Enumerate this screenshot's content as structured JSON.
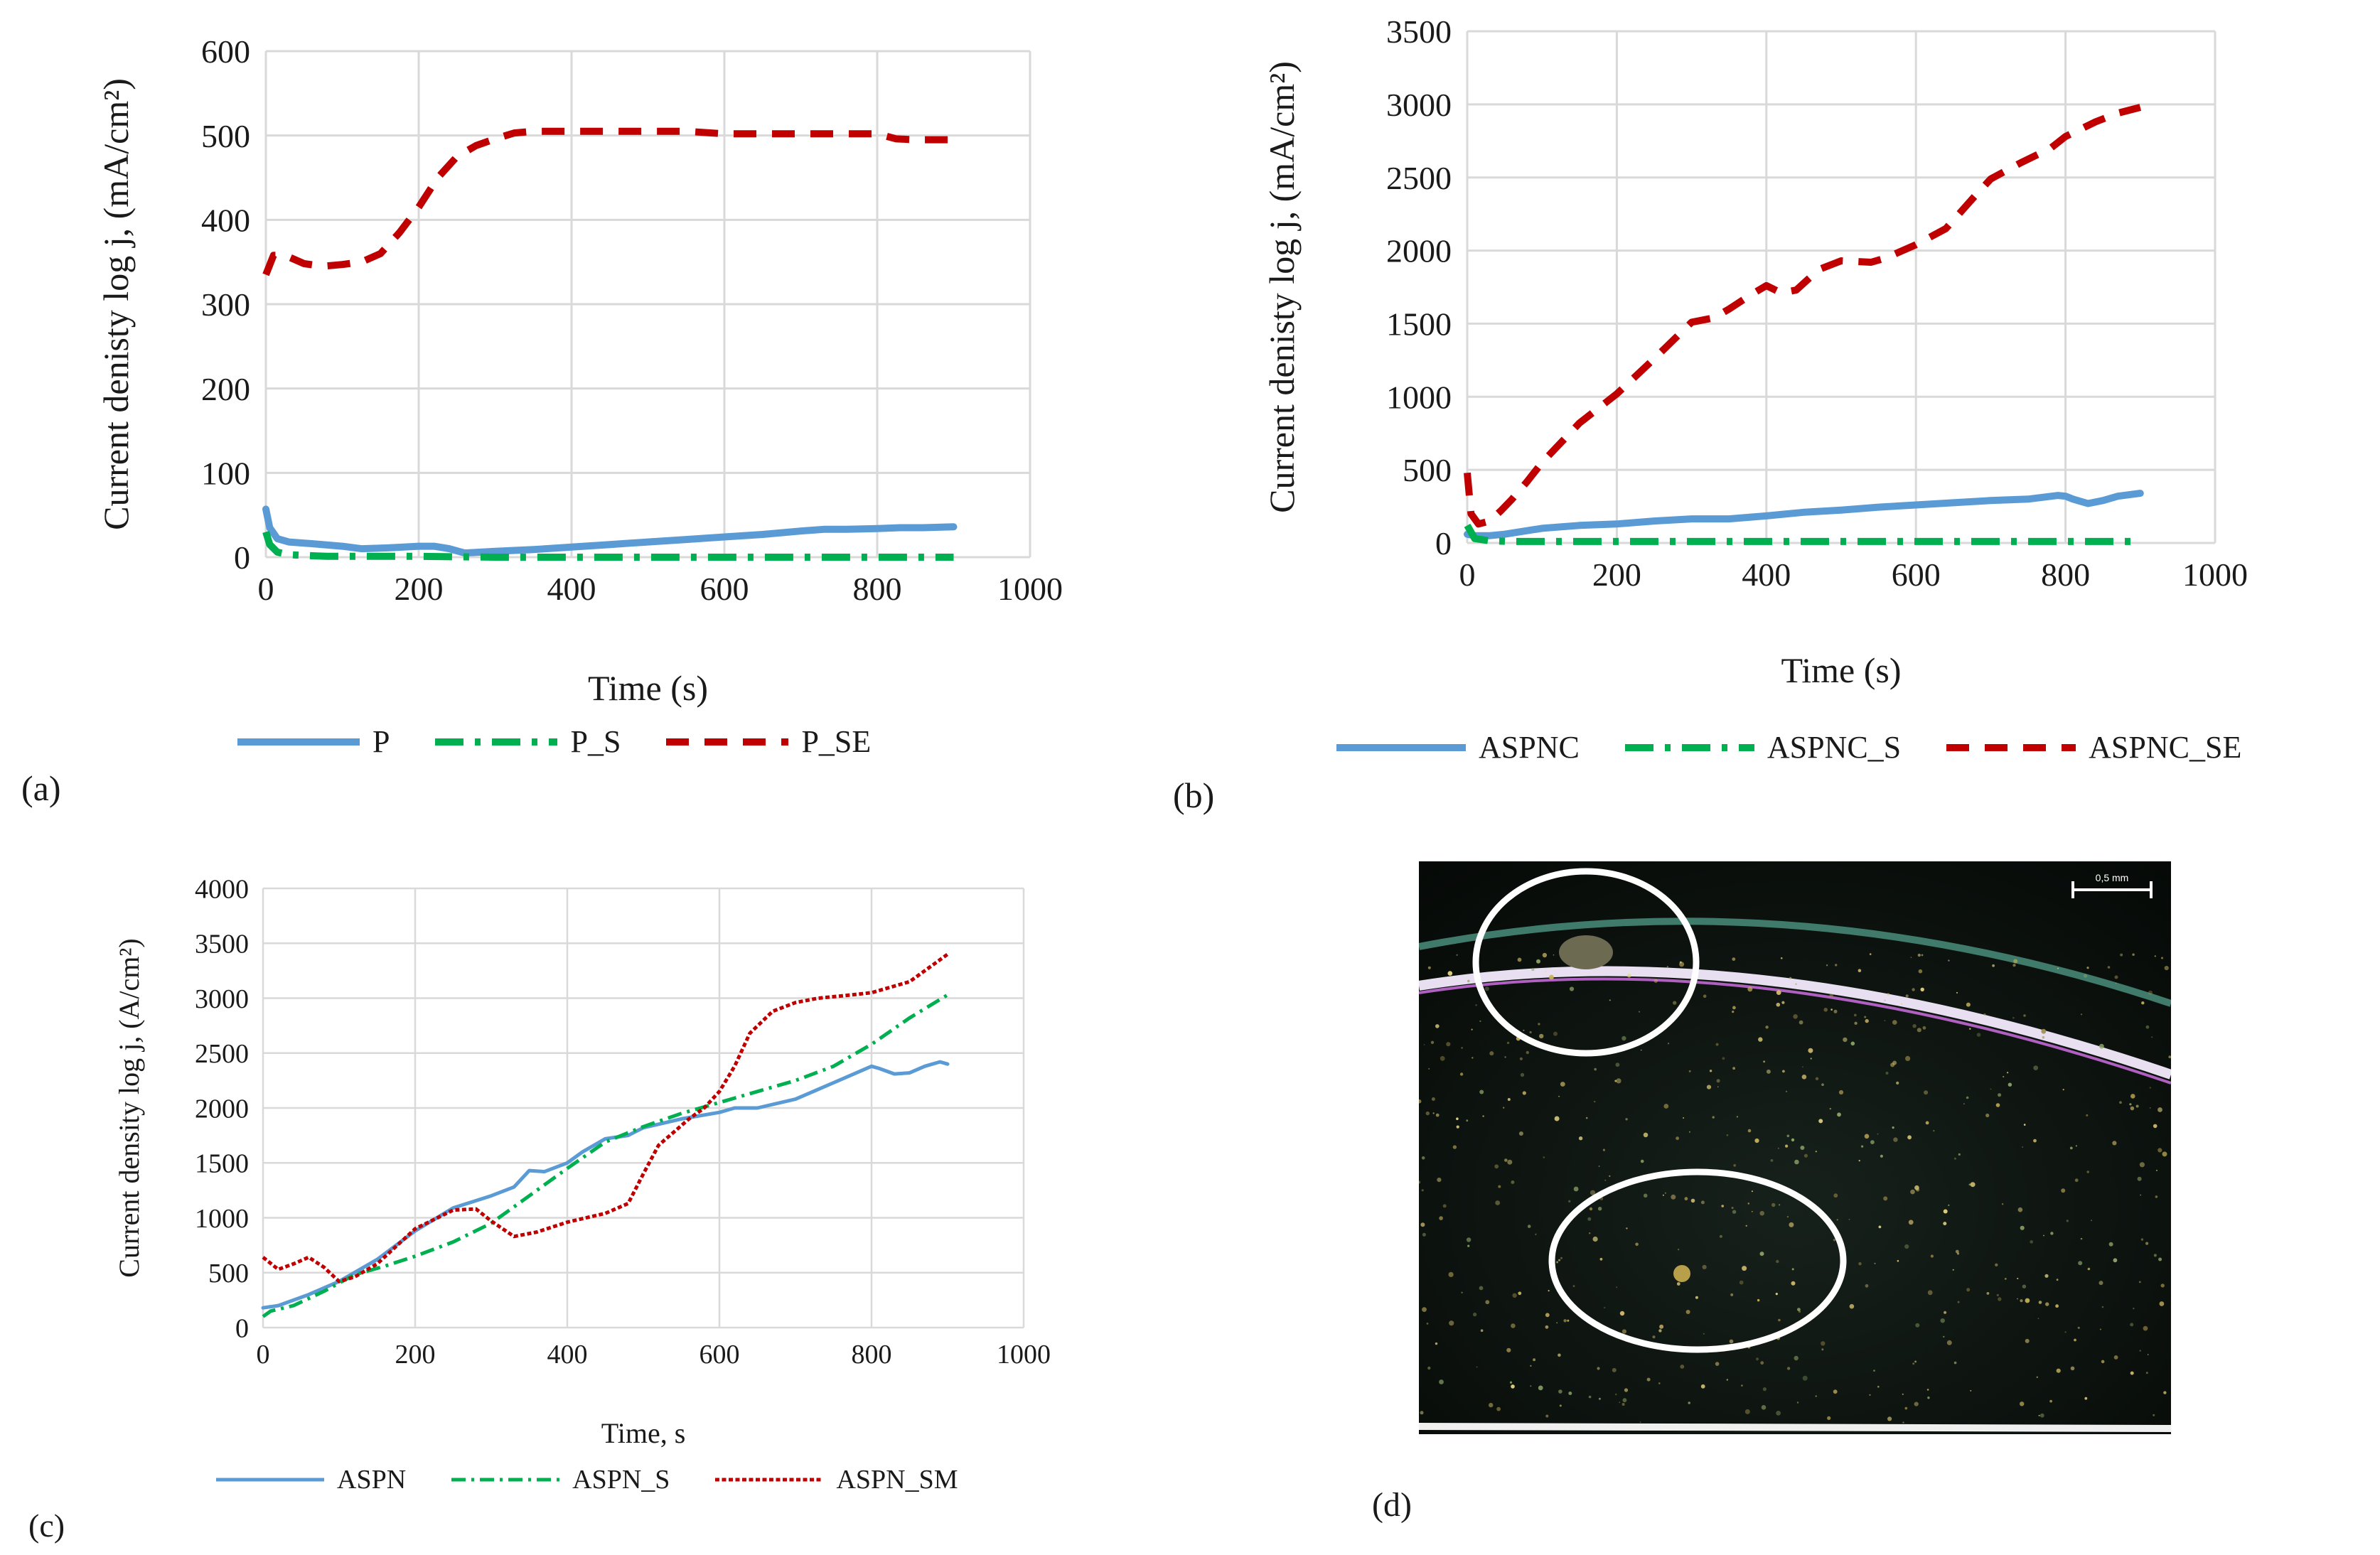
{
  "panels": {
    "a": {
      "label": "(a)"
    },
    "b": {
      "label": "(b)"
    },
    "c": {
      "label": "(c)"
    },
    "d": {
      "label": "(d)",
      "scale_bar_text": "0,5 mm"
    }
  },
  "colors": {
    "blue": "#5b9bd5",
    "green": "#00b050",
    "red": "#c00000",
    "grid": "#d9d9d9",
    "photo_background": "#0d1410",
    "marker_circle": "#ffffff"
  },
  "chart_data": [
    {
      "id": "a",
      "type": "line",
      "xlabel": "Time (s)",
      "ylabel": "Current denisty log j, (mA/cm²)",
      "xlim": [
        0,
        1000
      ],
      "ylim": [
        0,
        600
      ],
      "xticks": [
        0,
        200,
        400,
        600,
        800,
        1000
      ],
      "yticks": [
        0,
        100,
        200,
        300,
        400,
        500,
        600
      ],
      "grid": true,
      "legend_position": "bottom",
      "series": [
        {
          "name": "P",
          "style": "solid",
          "color": "#5b9bd5",
          "x": [
            0,
            5,
            15,
            30,
            60,
            100,
            125,
            160,
            200,
            220,
            240,
            260,
            300,
            350,
            400,
            450,
            500,
            550,
            600,
            650,
            700,
            730,
            760,
            800,
            830,
            860,
            900
          ],
          "y": [
            57,
            35,
            22,
            18,
            16,
            13,
            10,
            11,
            13,
            13,
            10,
            5,
            7,
            9,
            12,
            15,
            18,
            21,
            24,
            27,
            31,
            33,
            33,
            34,
            35,
            35,
            36
          ]
        },
        {
          "name": "P_S",
          "style": "dashdot",
          "color": "#00b050",
          "x": [
            0,
            5,
            15,
            30,
            50,
            80,
            120,
            200,
            300,
            400,
            500,
            600,
            700,
            800,
            900
          ],
          "y": [
            30,
            15,
            6,
            3,
            2,
            1,
            1,
            1,
            0,
            0,
            0,
            0,
            0,
            0,
            0
          ]
        },
        {
          "name": "P_SE",
          "style": "dashed",
          "color": "#c00000",
          "x": [
            0,
            10,
            25,
            50,
            75,
            100,
            125,
            150,
            175,
            200,
            225,
            250,
            275,
            300,
            325,
            350,
            400,
            450,
            500,
            550,
            600,
            650,
            700,
            750,
            800,
            825,
            850,
            900
          ],
          "y": [
            335,
            358,
            358,
            348,
            345,
            347,
            350,
            360,
            385,
            415,
            450,
            475,
            488,
            496,
            503,
            505,
            505,
            505,
            505,
            505,
            502,
            502,
            502,
            502,
            502,
            496,
            495,
            495
          ]
        }
      ]
    },
    {
      "id": "b",
      "type": "line",
      "xlabel": "Time (s)",
      "ylabel": "Current denisty log j, (mA/cm²)",
      "xlim": [
        0,
        1000
      ],
      "ylim": [
        0,
        3500
      ],
      "xticks": [
        0,
        200,
        400,
        600,
        800,
        1000
      ],
      "yticks": [
        0,
        500,
        1000,
        1500,
        2000,
        2500,
        3000,
        3500
      ],
      "grid": true,
      "legend_position": "bottom",
      "series": [
        {
          "name": "ASPNC",
          "style": "solid",
          "color": "#5b9bd5",
          "x": [
            0,
            10,
            30,
            50,
            100,
            150,
            200,
            250,
            300,
            350,
            400,
            450,
            500,
            550,
            600,
            650,
            700,
            750,
            790,
            800,
            810,
            830,
            850,
            870,
            900
          ],
          "y": [
            60,
            50,
            50,
            60,
            100,
            120,
            130,
            150,
            165,
            165,
            185,
            210,
            225,
            245,
            260,
            275,
            290,
            300,
            325,
            320,
            300,
            270,
            290,
            320,
            340
          ]
        },
        {
          "name": "ASPNC_S",
          "style": "dashdot",
          "color": "#00b050",
          "x": [
            0,
            10,
            30,
            60,
            100,
            200,
            300,
            400,
            500,
            600,
            700,
            800,
            900
          ],
          "y": [
            120,
            30,
            15,
            10,
            10,
            10,
            10,
            10,
            10,
            10,
            10,
            10,
            10
          ]
        },
        {
          "name": "ASPNC_SE",
          "style": "dashed",
          "color": "#c00000",
          "x": [
            0,
            5,
            15,
            30,
            45,
            60,
            80,
            100,
            150,
            200,
            250,
            300,
            330,
            350,
            380,
            400,
            420,
            440,
            470,
            500,
            540,
            560,
            600,
            640,
            680,
            700,
            740,
            780,
            800,
            840,
            870,
            900
          ],
          "y": [
            480,
            200,
            130,
            150,
            220,
            300,
            420,
            550,
            820,
            1020,
            1260,
            1510,
            1540,
            1600,
            1700,
            1760,
            1710,
            1730,
            1870,
            1930,
            1920,
            1950,
            2040,
            2150,
            2380,
            2490,
            2600,
            2700,
            2780,
            2880,
            2940,
            2980
          ]
        }
      ]
    },
    {
      "id": "c",
      "type": "line",
      "xlabel": "Time, s",
      "ylabel": "Current density log j, (A/cm²)",
      "xlim": [
        0,
        1000
      ],
      "ylim": [
        0,
        4000
      ],
      "xticks": [
        0,
        200,
        400,
        600,
        800,
        1000
      ],
      "yticks": [
        0,
        500,
        1000,
        1500,
        2000,
        2500,
        3000,
        3500,
        4000
      ],
      "grid": true,
      "legend_position": "bottom",
      "series": [
        {
          "name": "ASPN",
          "style": "solid",
          "color": "#5b9bd5",
          "x": [
            0,
            20,
            60,
            100,
            150,
            200,
            250,
            300,
            330,
            350,
            370,
            400,
            420,
            450,
            480,
            500,
            550,
            600,
            620,
            650,
            700,
            750,
            800,
            810,
            830,
            850,
            870,
            890,
            900
          ],
          "y": [
            180,
            200,
            300,
            420,
            620,
            880,
            1090,
            1200,
            1280,
            1430,
            1420,
            1500,
            1600,
            1720,
            1750,
            1820,
            1900,
            1960,
            2000,
            2000,
            2080,
            2230,
            2380,
            2360,
            2310,
            2320,
            2380,
            2420,
            2400
          ]
        },
        {
          "name": "ASPN_S",
          "style": "dashdot",
          "color": "#00b050",
          "x": [
            0,
            10,
            40,
            80,
            120,
            160,
            200,
            250,
            300,
            350,
            400,
            450,
            500,
            550,
            600,
            650,
            700,
            750,
            800,
            850,
            900
          ],
          "y": [
            100,
            150,
            200,
            330,
            480,
            560,
            650,
            780,
            950,
            1200,
            1450,
            1690,
            1830,
            1950,
            2050,
            2150,
            2250,
            2380,
            2580,
            2820,
            3030
          ]
        },
        {
          "name": "ASPN_SM",
          "style": "dotted",
          "color": "#c00000",
          "x": [
            0,
            20,
            40,
            60,
            80,
            100,
            120,
            150,
            200,
            250,
            280,
            300,
            330,
            360,
            400,
            450,
            480,
            500,
            520,
            540,
            560,
            580,
            600,
            620,
            640,
            670,
            700,
            730,
            760,
            800,
            850,
            870,
            900
          ],
          "y": [
            640,
            530,
            580,
            640,
            550,
            420,
            460,
            580,
            900,
            1070,
            1080,
            970,
            830,
            870,
            960,
            1040,
            1130,
            1400,
            1660,
            1780,
            1900,
            2000,
            2150,
            2380,
            2680,
            2880,
            2960,
            3000,
            3020,
            3050,
            3150,
            3250,
            3400
          ]
        }
      ]
    }
  ]
}
